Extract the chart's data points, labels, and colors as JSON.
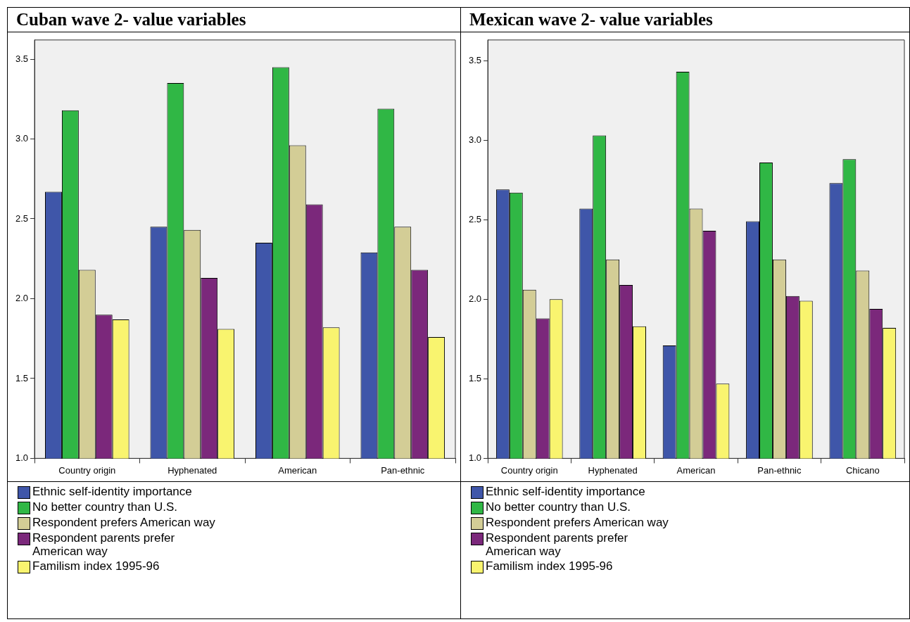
{
  "chart_data": [
    {
      "type": "bar",
      "title": "Cuban wave 2- value variables",
      "categories": [
        "Country origin",
        "Hyphenated",
        "American",
        "Pan-ethnic"
      ],
      "series": [
        {
          "name": "Ethnic self-identity importance",
          "color": "#3f56a9",
          "values": [
            2.67,
            2.45,
            2.35,
            2.29
          ]
        },
        {
          "name": "No better country than U.S.",
          "color": "#30b745",
          "values": [
            3.18,
            3.35,
            3.45,
            3.19
          ]
        },
        {
          "name": "Respondent prefers American way",
          "color": "#d3cd96",
          "values": [
            2.18,
            2.43,
            2.96,
            2.45
          ]
        },
        {
          "name": "Respondent parents prefer American way",
          "color": "#7b287b",
          "values": [
            1.9,
            2.13,
            2.59,
            2.18
          ]
        },
        {
          "name": "Familism index 1995-96",
          "color": "#f9f46f",
          "values": [
            1.87,
            1.81,
            1.82,
            1.76
          ]
        }
      ],
      "ylim": [
        1,
        3.62
      ],
      "yticks": [
        {
          "value": 1,
          "label": "1.0"
        },
        {
          "value": 1.5,
          "label": "1.5"
        },
        {
          "value": 2,
          "label": "2.0"
        },
        {
          "value": 2.5,
          "label": "2.5"
        },
        {
          "value": 3,
          "label": "3.0"
        },
        {
          "value": 3.5,
          "label": "3.5"
        }
      ],
      "grid": false,
      "legend": "bottom"
    },
    {
      "type": "bar",
      "title": "Mexican wave 2- value variables",
      "categories": [
        "Country origin",
        "Hyphenated",
        "American",
        "Pan-ethnic",
        "Chicano"
      ],
      "series": [
        {
          "name": "Ethnic self-identity importance",
          "color": "#3f56a9",
          "values": [
            2.69,
            2.57,
            1.71,
            2.49,
            2.73
          ]
        },
        {
          "name": "No better country than U.S.",
          "color": "#30b745",
          "values": [
            2.67,
            3.03,
            3.43,
            2.86,
            2.88
          ]
        },
        {
          "name": "Respondent prefers American way",
          "color": "#d3cd96",
          "values": [
            2.06,
            2.25,
            2.57,
            2.25,
            2.18
          ]
        },
        {
          "name": "Respondent parents prefer American way",
          "color": "#7b287b",
          "values": [
            1.88,
            2.09,
            2.43,
            2.02,
            1.94
          ]
        },
        {
          "name": "Familism index 1995-96",
          "color": "#f9f46f",
          "values": [
            2,
            1.83,
            1.47,
            1.99,
            1.82
          ]
        }
      ],
      "ylim": [
        1,
        3.63
      ],
      "yticks": [
        {
          "value": 1,
          "label": "1.0"
        },
        {
          "value": 1.5,
          "label": "1.5"
        },
        {
          "value": 2,
          "label": "2.0"
        },
        {
          "value": 2.5,
          "label": "2.5"
        },
        {
          "value": 3,
          "label": "3.0"
        },
        {
          "value": 3.5,
          "label": "3.5"
        }
      ],
      "grid": false,
      "legend": "bottom"
    }
  ]
}
